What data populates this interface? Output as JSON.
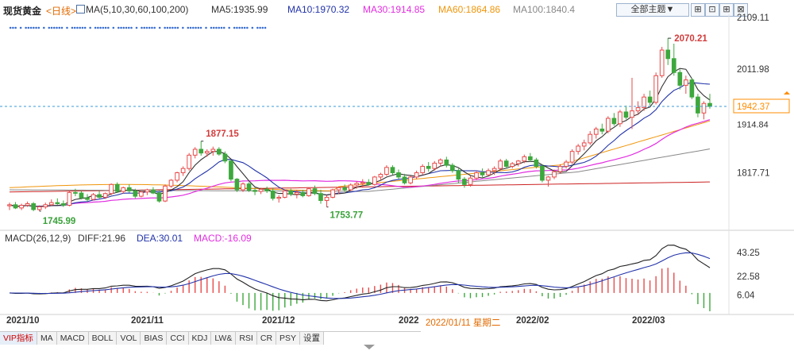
{
  "header": {
    "title": "现货黄金",
    "period": "<日线>",
    "ma_label": "MA(5,10,30,60,100,200)",
    "ma5": "MA5:1935.99",
    "ma10": "MA10:1970.32",
    "ma30": "MA30:1914.85",
    "ma60": "MA60:1864.86",
    "ma100": "MA100:1840.4",
    "topic_select": "全部主题▼"
  },
  "macd_header": {
    "label": "MACD(26,12,9)",
    "diff": "DIFF:21.96",
    "dea": "DEA:30.01",
    "macd": "MACD:-16.09"
  },
  "price_axis": {
    "top": "2109.11",
    "mid": "2011.98",
    "low": "1817.71",
    "current": "1942.37",
    "partial": "1914.84"
  },
  "macd_axis": {
    "top": "43.25",
    "mid": "22.58",
    "low": "6.04"
  },
  "annotations": {
    "high": "2070.21",
    "high2": "1877.15",
    "low1": "1745.99",
    "low2": "1753.77"
  },
  "x_labels": [
    "2021/10",
    "2021/11",
    "2021/12",
    "2022",
    "2022/02",
    "2022/03"
  ],
  "cursor_date": "2022/01/11 星期二",
  "tabs": [
    "VIP指标",
    "MA",
    "MACD",
    "BOLL",
    "VOL",
    "BIAS",
    "CCI",
    "KDJ",
    "LW&",
    "RSI",
    "CR",
    "PSY",
    "设置"
  ],
  "colors": {
    "up": "#e84a4a",
    "down": "#3da83d",
    "ma5": "#333333",
    "ma10": "#2233aa",
    "ma30": "#e22ee0",
    "ma60": "#f0960a",
    "ma100": "#888888",
    "ma200": "#cc2222",
    "accent": "#ff8c00"
  },
  "chart_data": [
    {
      "type": "candlestick",
      "title": "现货黄金 日线",
      "y_ticks": [
        1817.71,
        2011.98,
        2109.11
      ],
      "ylim": [
        1725,
        2109.11
      ],
      "current_price": 1942.37,
      "candles": [
        [
          1756,
          1762,
          1748,
          1758
        ],
        [
          1758,
          1763,
          1750,
          1752
        ],
        [
          1752,
          1760,
          1748,
          1757
        ],
        [
          1757,
          1764,
          1754,
          1760
        ],
        [
          1760,
          1763,
          1746,
          1749
        ],
        [
          1749,
          1757,
          1745.99,
          1754
        ],
        [
          1754,
          1762,
          1750,
          1758
        ],
        [
          1758,
          1768,
          1756,
          1762
        ],
        [
          1762,
          1770,
          1758,
          1760
        ],
        [
          1760,
          1766,
          1754,
          1757
        ],
        [
          1757,
          1783,
          1755,
          1781
        ],
        [
          1781,
          1788,
          1774,
          1780
        ],
        [
          1780,
          1784,
          1768,
          1771
        ],
        [
          1771,
          1778,
          1764,
          1768
        ],
        [
          1768,
          1780,
          1766,
          1777
        ],
        [
          1777,
          1784,
          1770,
          1772
        ],
        [
          1772,
          1781,
          1769,
          1779
        ],
        [
          1779,
          1798,
          1776,
          1796
        ],
        [
          1796,
          1800,
          1780,
          1783
        ],
        [
          1783,
          1792,
          1779,
          1790
        ],
        [
          1790,
          1796,
          1781,
          1784
        ],
        [
          1784,
          1788,
          1770,
          1774
        ],
        [
          1774,
          1784,
          1772,
          1782
        ],
        [
          1782,
          1788,
          1776,
          1786
        ],
        [
          1786,
          1791,
          1778,
          1780
        ],
        [
          1780,
          1784,
          1762,
          1765
        ],
        [
          1765,
          1796,
          1763,
          1793
        ],
        [
          1793,
          1806,
          1790,
          1804
        ],
        [
          1804,
          1820,
          1800,
          1818
        ],
        [
          1818,
          1830,
          1812,
          1826
        ],
        [
          1826,
          1855,
          1822,
          1851
        ],
        [
          1851,
          1866,
          1845,
          1862
        ],
        [
          1862,
          1877.15,
          1850,
          1855
        ],
        [
          1855,
          1862,
          1848,
          1858
        ],
        [
          1858,
          1867,
          1850,
          1862
        ],
        [
          1862,
          1866,
          1850,
          1853
        ],
        [
          1853,
          1858,
          1836,
          1840
        ],
        [
          1840,
          1842,
          1802,
          1806
        ],
        [
          1806,
          1808,
          1782,
          1786
        ],
        [
          1786,
          1800,
          1782,
          1797
        ],
        [
          1797,
          1800,
          1782,
          1785
        ],
        [
          1785,
          1790,
          1776,
          1783
        ],
        [
          1783,
          1790,
          1778,
          1787
        ],
        [
          1787,
          1792,
          1780,
          1784
        ],
        [
          1784,
          1790,
          1766,
          1770
        ],
        [
          1770,
          1776,
          1762,
          1772
        ],
        [
          1772,
          1786,
          1770,
          1784
        ],
        [
          1784,
          1788,
          1774,
          1778
        ],
        [
          1778,
          1786,
          1770,
          1781
        ],
        [
          1781,
          1786,
          1772,
          1775
        ],
        [
          1775,
          1790,
          1773,
          1788
        ],
        [
          1788,
          1794,
          1776,
          1779
        ],
        [
          1779,
          1786,
          1760,
          1766
        ],
        [
          1766,
          1776,
          1753.77,
          1772
        ],
        [
          1772,
          1788,
          1770,
          1786
        ],
        [
          1786,
          1792,
          1778,
          1790
        ],
        [
          1790,
          1796,
          1782,
          1786
        ],
        [
          1786,
          1798,
          1784,
          1795
        ],
        [
          1795,
          1802,
          1788,
          1798
        ],
        [
          1798,
          1806,
          1790,
          1800
        ],
        [
          1800,
          1806,
          1794,
          1796
        ],
        [
          1796,
          1812,
          1794,
          1810
        ],
        [
          1810,
          1818,
          1804,
          1815
        ],
        [
          1815,
          1832,
          1812,
          1828
        ],
        [
          1828,
          1832,
          1814,
          1818
        ],
        [
          1818,
          1824,
          1806,
          1810
        ],
        [
          1810,
          1816,
          1796,
          1799
        ],
        [
          1799,
          1812,
          1796,
          1810
        ],
        [
          1810,
          1822,
          1806,
          1818
        ],
        [
          1818,
          1834,
          1814,
          1830
        ],
        [
          1830,
          1838,
          1820,
          1826
        ],
        [
          1826,
          1840,
          1822,
          1836
        ],
        [
          1836,
          1845,
          1830,
          1842
        ],
        [
          1842,
          1848,
          1828,
          1832
        ],
        [
          1832,
          1836,
          1818,
          1822
        ],
        [
          1822,
          1826,
          1798,
          1806
        ],
        [
          1806,
          1810,
          1790,
          1796
        ],
        [
          1796,
          1812,
          1792,
          1808
        ],
        [
          1808,
          1822,
          1804,
          1818
        ],
        [
          1818,
          1826,
          1808,
          1814
        ],
        [
          1814,
          1826,
          1812,
          1822
        ],
        [
          1822,
          1830,
          1814,
          1826
        ],
        [
          1826,
          1844,
          1822,
          1840
        ],
        [
          1840,
          1844,
          1826,
          1830
        ],
        [
          1830,
          1838,
          1826,
          1835
        ],
        [
          1835,
          1842,
          1830,
          1840
        ],
        [
          1840,
          1852,
          1836,
          1848
        ],
        [
          1848,
          1855,
          1838,
          1842
        ],
        [
          1842,
          1846,
          1826,
          1830
        ],
        [
          1830,
          1834,
          1800,
          1804
        ],
        [
          1804,
          1812,
          1792,
          1810
        ],
        [
          1810,
          1824,
          1806,
          1820
        ],
        [
          1820,
          1834,
          1816,
          1830
        ],
        [
          1830,
          1842,
          1826,
          1838
        ],
        [
          1838,
          1862,
          1834,
          1858
        ],
        [
          1858,
          1872,
          1852,
          1868
        ],
        [
          1868,
          1880,
          1860,
          1874
        ],
        [
          1874,
          1896,
          1870,
          1890
        ],
        [
          1890,
          1904,
          1882,
          1900
        ],
        [
          1900,
          1910,
          1890,
          1896
        ],
        [
          1896,
          1924,
          1892,
          1920
        ],
        [
          1920,
          1930,
          1906,
          1910
        ],
        [
          1910,
          1936,
          1904,
          1932
        ],
        [
          1932,
          1944,
          1918,
          1922
        ],
        [
          1922,
          1996,
          1900,
          1934
        ],
        [
          1934,
          1952,
          1926,
          1940
        ],
        [
          1940,
          1966,
          1934,
          1960
        ],
        [
          1960,
          1972,
          1944,
          1950
        ],
        [
          1950,
          2006,
          1946,
          2000
        ],
        [
          2000,
          2054,
          1996,
          2048
        ],
        [
          2048,
          2070.21,
          2020,
          2032
        ],
        [
          2032,
          2060,
          2000,
          2006
        ],
        [
          2006,
          2012,
          1974,
          1982
        ],
        [
          1982,
          2000,
          1966,
          1992
        ],
        [
          1992,
          1996,
          1956,
          1960
        ],
        [
          1960,
          1966,
          1922,
          1930
        ],
        [
          1930,
          1952,
          1918,
          1948
        ],
        [
          1948,
          1966,
          1938,
          1942.37
        ]
      ]
    },
    {
      "type": "macd",
      "title": "MACD(26,12,9)",
      "y_ticks": [
        6.04,
        22.58,
        43.25
      ],
      "ylim": [
        -8,
        46
      ],
      "diff": 21.96,
      "dea": 30.01,
      "macd": -16.09
    }
  ]
}
